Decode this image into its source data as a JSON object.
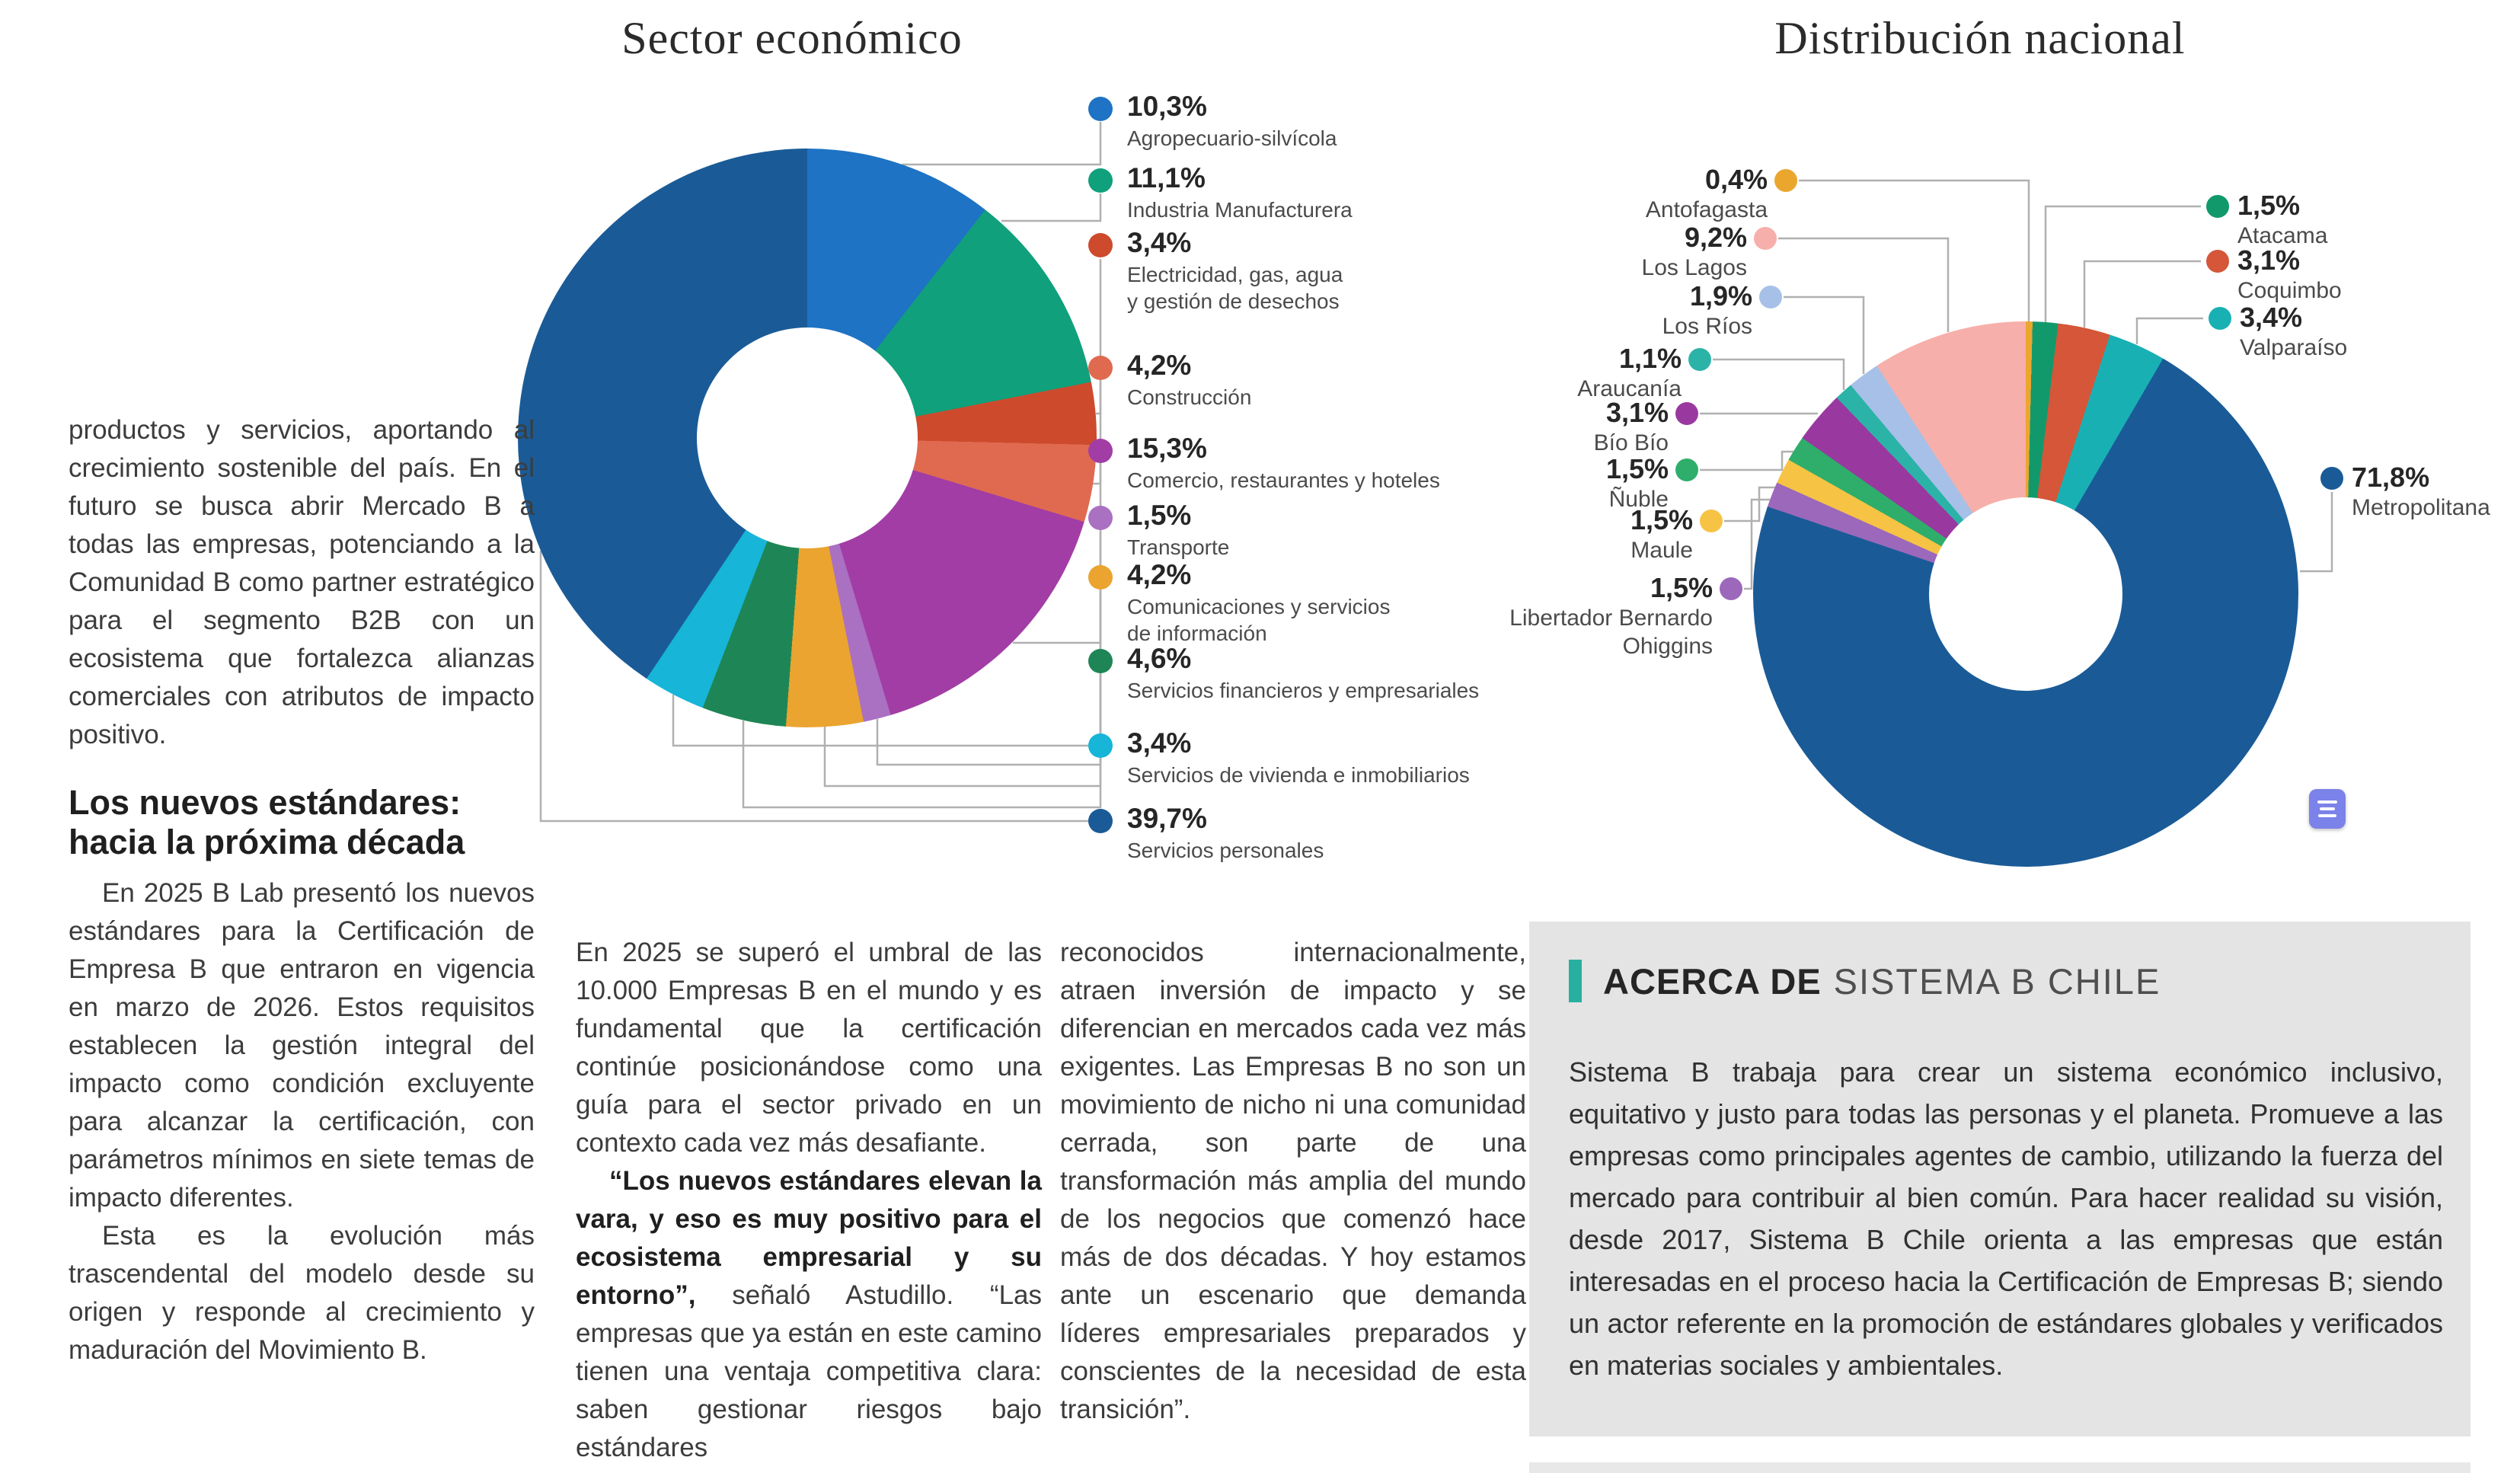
{
  "titles": {
    "sector": "Sector económico",
    "nacional": "Distribución nacional"
  },
  "chart_data": [
    {
      "type": "donut",
      "title": "Sector económico",
      "legend_position": "right",
      "slices": [
        {
          "label": "Agropecuario-silvícola",
          "pct_label": "10,3%",
          "value": 10.3,
          "color": "#1e73c4"
        },
        {
          "label": "Industria Manufacturera",
          "pct_label": "11,1%",
          "value": 11.1,
          "color": "#10a07b"
        },
        {
          "label": "Electricidad, gas, agua\ny gestión de desechos",
          "pct_label": "3,4%",
          "value": 3.4,
          "color": "#cd4a2d"
        },
        {
          "label": "Construcción",
          "pct_label": "4,2%",
          "value": 4.2,
          "color": "#e06a50"
        },
        {
          "label": "Comercio, restaurantes y hoteles",
          "pct_label": "15,3%",
          "value": 15.3,
          "color": "#a23da6"
        },
        {
          "label": "Transporte",
          "pct_label": "1,5%",
          "value": 1.5,
          "color": "#aa70c2"
        },
        {
          "label": "Comunicaciones y servicios\nde información",
          "pct_label": "4,2%",
          "value": 4.2,
          "color": "#eaa42f"
        },
        {
          "label": "Servicios financieros y empresariales",
          "pct_label": "4,6%",
          "value": 4.6,
          "color": "#1e8656"
        },
        {
          "label": "Servicios de vivienda e inmobiliarios",
          "pct_label": "3,4%",
          "value": 3.4,
          "color": "#17b5d8"
        },
        {
          "label": "Servicios personales",
          "pct_label": "39,7%",
          "value": 39.7,
          "color": "#1a5b97"
        }
      ]
    },
    {
      "type": "donut",
      "title": "Distribución nacional",
      "legend_position": "around",
      "slices": [
        {
          "label": "Antofagasta",
          "pct_label": "0,4%",
          "value": 0.4,
          "color": "#eba62e"
        },
        {
          "label": "Atacama",
          "pct_label": "1,5%",
          "value": 1.5,
          "color": "#12996b"
        },
        {
          "label": "Coquimbo",
          "pct_label": "3,1%",
          "value": 3.1,
          "color": "#d55638"
        },
        {
          "label": "Valparaíso",
          "pct_label": "3,4%",
          "value": 3.4,
          "color": "#19b0b4"
        },
        {
          "label": "Metropolitana",
          "pct_label": "71,8%",
          "value": 71.8,
          "color": "#1a5b97"
        },
        {
          "label": "Libertador Bernardo\nOhiggins",
          "pct_label": "1,5%",
          "value": 1.5,
          "color": "#9c68bb"
        },
        {
          "label": "Maule",
          "pct_label": "1,5%",
          "value": 1.5,
          "color": "#f6c344"
        },
        {
          "label": "Ñuble",
          "pct_label": "1,5%",
          "value": 1.5,
          "color": "#2fae6b"
        },
        {
          "label": "Bío Bío",
          "pct_label": "3,1%",
          "value": 3.1,
          "color": "#99399f"
        },
        {
          "label": "Araucanía",
          "pct_label": "1,1%",
          "value": 1.1,
          "color": "#2cb3a8"
        },
        {
          "label": "Los Ríos",
          "pct_label": "1,9%",
          "value": 1.9,
          "color": "#a7c0e8"
        },
        {
          "label": "Los Lagos",
          "pct_label": "9,2%",
          "value": 9.2,
          "color": "#f6afaa"
        }
      ]
    }
  ],
  "article": {
    "columns": [
      {
        "blocks": [
          {
            "type": "p",
            "indent": false,
            "runs": [
              {
                "t": "productos y servicios, aportando al crecimiento sostenible del país. En el futuro se busca abrir Mercado B a todas las empresas, potenciando a la Comunidad B como partner estratégico para el segmento B2B con un ecosistema que fortalezca alianzas comerciales con atributos de impacto positivo.",
                "b": false
              }
            ]
          },
          {
            "type": "h",
            "runs": [
              {
                "t": "Los nuevos estándares: hacia la próxima década",
                "b": true
              }
            ]
          },
          {
            "type": "p",
            "indent": true,
            "runs": [
              {
                "t": "En 2025 B Lab presentó los nuevos estándares para la Certificación de Empresa B que entraron en vigencia en marzo de 2026. Estos requisitos establecen la gestión integral del impacto como condición excluyente para alcanzar la certificación, con parámetros mínimos en siete temas de impacto diferentes.",
                "b": false
              }
            ]
          },
          {
            "type": "p",
            "indent": true,
            "runs": [
              {
                "t": "Esta es la evolución más trascendental del modelo desde su origen y responde al crecimiento y maduración del Movimiento B.",
                "b": false
              }
            ]
          }
        ]
      },
      {
        "blocks": [
          {
            "type": "p",
            "indent": false,
            "runs": [
              {
                "t": "En 2025 se superó el umbral de las 10.000 Empresas B en el mundo y es fundamental que la certificación continúe posicionándose como una guía para el sector privado en un contexto cada vez más desafiante.",
                "b": false
              }
            ]
          },
          {
            "type": "p",
            "indent": true,
            "runs": [
              {
                "t": "“Los nuevos estándares elevan la vara, y eso es muy positivo para el ecosistema empresarial y su entorno”,",
                "b": true
              },
              {
                "t": " señaló Astudillo. “Las empresas que ya están en este camino tienen una ventaja competitiva clara: saben gestionar riesgos bajo estándares",
                "b": false
              }
            ]
          }
        ]
      },
      {
        "blocks": [
          {
            "type": "p",
            "indent": false,
            "runs": [
              {
                "t": "reconocidos internacionalmente, atraen inversión de impacto y se diferencian en mercados cada vez más exigentes. Las Empresas B no son un movimiento de nicho ni una comunidad cerrada, son parte de una transformación más amplia del mundo de los negocios que comenzó hace más de dos décadas. Y hoy estamos ante un escenario que demanda líderes empresariales preparados y conscientes de la necesidad de esta transición”.",
                "b": false
              }
            ]
          }
        ]
      }
    ]
  },
  "about": {
    "kicker_bold": "ACERCA DE",
    "kicker_light": "SISTEMA B CHILE",
    "accent_color": "#27b0a0",
    "background": "#e4e4e4",
    "body": "Sistema B trabaja para crear un sistema económico inclusivo, equitativo y justo para todas las personas y el planeta. Promueve a las empresas como principales agentes de cambio, utilizando la fuerza del mercado para contribuir al bien común. Para hacer realidad su visión, desde 2017, Sistema B Chile orienta a las empresas que están interesadas en el proceso hacia la Certificación de Empresas B; siendo un actor referente en la promoción de estándares globales y verificados en materias sociales y ambientales."
  },
  "widget": {
    "color": "#7b82e9",
    "icon": "text-lines-icon"
  }
}
